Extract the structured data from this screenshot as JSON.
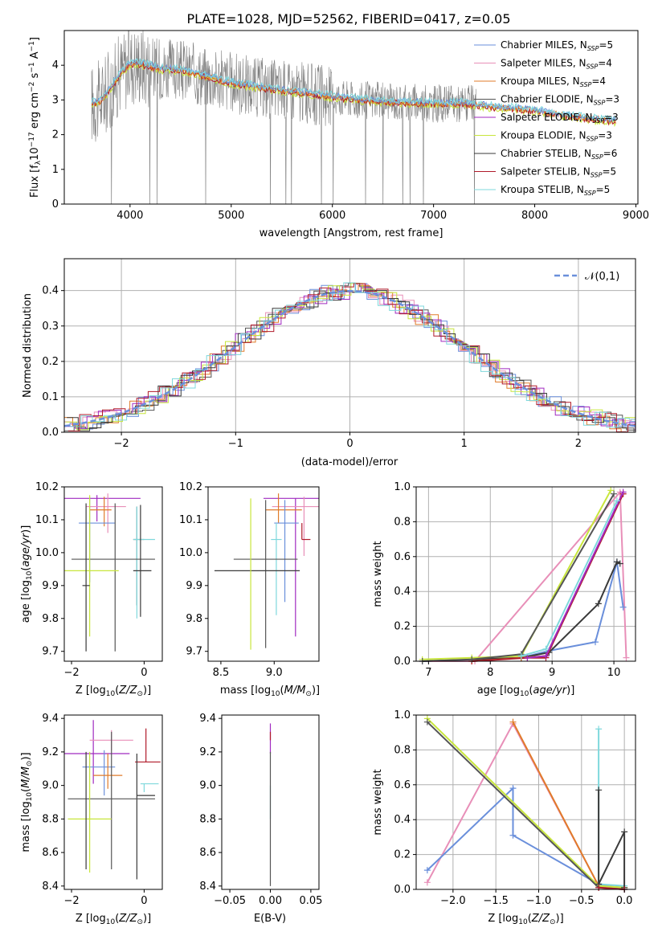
{
  "colors": {
    "chabrier_miles": "#6a8fdb",
    "salpeter_miles": "#e88fb8",
    "kroupa_miles": "#e07b2a",
    "chabrier_elodie": "#555555",
    "salpeter_elodie": "#a02ac0",
    "kroupa_elodie": "#c8e63c",
    "chabrier_stelib": "#3a3a3a",
    "salpeter_stelib": "#b01a2a",
    "kroupa_stelib": "#7fd8dc",
    "data_grey": "#808080",
    "grid": "#b0b0b0"
  },
  "chart_data": [
    {
      "id": "spectrum",
      "type": "line",
      "title": "PLATE=1028, MJD=52562, FIBERID=0417, z=0.05",
      "xlabel": "wavelength [Angstrom, rest frame]",
      "ylabel": "Flux [f_λ10^-17 erg cm^-2 s^-1 A^-1]",
      "xlim": [
        3350,
        9020
      ],
      "ylim": [
        0,
        5
      ],
      "xticks": [
        "4000",
        "5000",
        "6000",
        "7000",
        "8000",
        "9000"
      ],
      "yticks": [
        "0",
        "1",
        "2",
        "3",
        "4"
      ],
      "grid": false,
      "legend_position": "right",
      "legend": [
        {
          "model": "Chabrier MILES",
          "n": "5",
          "color": "chabrier_miles"
        },
        {
          "model": "Salpeter MILES",
          "n": "4",
          "color": "salpeter_miles"
        },
        {
          "model": "Kroupa MILES",
          "n": "4",
          "color": "kroupa_miles"
        },
        {
          "model": "Chabrier ELODIE",
          "n": "3",
          "color": "chabrier_elodie"
        },
        {
          "model": "Salpeter ELODIE",
          "n": "3",
          "color": "salpeter_elodie"
        },
        {
          "model": "Kroupa ELODIE",
          "n": "3",
          "color": "kroupa_elodie"
        },
        {
          "model": "Chabrier STELIB",
          "n": "6",
          "color": "chabrier_stelib"
        },
        {
          "model": "Salpeter STELIB",
          "n": "5",
          "color": "salpeter_stelib"
        },
        {
          "model": "Kroupa STELIB",
          "n": "5",
          "color": "kroupa_stelib"
        }
      ],
      "model_continuum": {
        "x": [
          3620,
          3700,
          3800,
          3900,
          4000,
          4100,
          4300,
          4500,
          4800,
          5000,
          5300,
          5600,
          6000,
          6300,
          6600,
          7000,
          7300,
          7600,
          8000,
          8300,
          8600,
          8800
        ],
        "y": [
          2.9,
          2.95,
          3.3,
          3.75,
          4.05,
          4.05,
          3.9,
          3.85,
          3.65,
          3.5,
          3.35,
          3.25,
          3.1,
          3.0,
          2.95,
          2.9,
          2.9,
          2.8,
          2.7,
          2.55,
          2.45,
          2.4
        ]
      },
      "data_spectrum_description_points": {
        "x": [
          3620,
          3700,
          3800,
          3900,
          4000,
          4200,
          4500,
          5000,
          5500,
          6000,
          6500,
          7000,
          7400
        ],
        "y": [
          3.0,
          2.9,
          3.3,
          3.8,
          4.1,
          3.95,
          3.85,
          3.5,
          3.3,
          3.1,
          2.95,
          2.9,
          2.8
        ]
      }
    },
    {
      "id": "residuals",
      "type": "line",
      "xlabel": "(data-model)/error",
      "ylabel": "Normed distribution",
      "xlim": [
        -2.5,
        2.5
      ],
      "ylim": [
        0,
        0.49
      ],
      "xticks": [
        "−2",
        "−1",
        "0",
        "1",
        "2"
      ],
      "yticks": [
        "0.0",
        "0.1",
        "0.2",
        "0.3",
        "0.4"
      ],
      "grid": true,
      "legend_position": "top-right",
      "gaussian_label": "𝒩(0,1)"
    },
    {
      "id": "age_vs_z",
      "type": "scatter",
      "xlabel": "Z [log10(Z/Z⊙)]",
      "ylabel": "age  [log10(age/yr)]",
      "xlim": [
        -2.2,
        0.5
      ],
      "ylim": [
        9.67,
        10.2
      ],
      "xticks": [
        "−2",
        "0"
      ],
      "yticks": [
        "9.7",
        "9.8",
        "9.9",
        "10.0",
        "10.1",
        "10.2"
      ],
      "points": [
        {
          "color": "salpeter_elodie",
          "x": -1.3,
          "xerr": [
            0.9,
            1.2
          ],
          "y": 10.165,
          "yerr": [
            0.07,
            0.01
          ]
        },
        {
          "color": "salpeter_miles",
          "x": -1.0,
          "xerr": [
            0.6,
            0.5
          ],
          "y": 10.14,
          "yerr": [
            0.08,
            0.04
          ]
        },
        {
          "color": "kroupa_miles",
          "x": -1.1,
          "xerr": [
            0.4,
            0.2
          ],
          "y": 10.13,
          "yerr": [
            0.05,
            0.04
          ]
        },
        {
          "color": "chabrier_miles",
          "x": -1.5,
          "xerr": [
            0.3,
            0.7
          ],
          "y": 10.09,
          "yerr": [
            0.18,
            0.08
          ]
        },
        {
          "color": "chabrier_elodie",
          "x": -0.2,
          "xerr": [
            0.1,
            0.2
          ],
          "y": 10.04,
          "yerr": [
            0.2,
            0.1
          ]
        },
        {
          "color": "kroupa_stelib",
          "x": -0.2,
          "xerr": [
            0.1,
            0.5
          ],
          "y": 10.04,
          "yerr": [
            0.24,
            0.1
          ]
        },
        {
          "color": "chabrier_elodie",
          "x": -0.8,
          "xerr": [
            1.2,
            1.1
          ],
          "y": 9.98,
          "yerr": [
            0.28,
            0.17
          ]
        },
        {
          "color": "kroupa_elodie",
          "x": -1.5,
          "xerr": [
            0.7,
            0.8
          ],
          "y": 9.945,
          "yerr": [
            0.2,
            0.23
          ]
        },
        {
          "color": "chabrier_stelib",
          "x": -0.1,
          "xerr": [
            0.2,
            0.3
          ],
          "y": 9.945,
          "yerr": [
            0.14,
            0.2
          ]
        },
        {
          "color": "chabrier_stelib",
          "x": -1.6,
          "xerr": [
            0.1,
            0.1
          ],
          "y": 9.9,
          "yerr": [
            0.2,
            0.25
          ]
        }
      ]
    },
    {
      "id": "age_vs_mass",
      "type": "scatter",
      "xlabel": "mass [log10(M/M⊙)]",
      "ylabel": "",
      "xlim": [
        8.38,
        9.42
      ],
      "ylim": [
        9.67,
        10.2
      ],
      "xticks": [
        "8.5",
        "9.0"
      ],
      "yticks": [
        "9.7",
        "9.8",
        "9.9",
        "10.0",
        "10.1",
        "10.2"
      ],
      "points": [
        {
          "color": "salpeter_elodie",
          "x": 9.2,
          "xerr": [
            0.3,
            0.4
          ],
          "y": 10.165,
          "yerr": [
            0.42,
            0.0
          ]
        },
        {
          "color": "salpeter_miles",
          "x": 9.28,
          "xerr": [
            0.3,
            0.3
          ],
          "y": 10.14,
          "yerr": [
            0.15,
            0.03
          ]
        },
        {
          "color": "kroupa_miles",
          "x": 9.04,
          "xerr": [
            0.12,
            0.22
          ],
          "y": 10.13,
          "yerr": [
            0.04,
            0.05
          ]
        },
        {
          "color": "chabrier_miles",
          "x": 9.1,
          "xerr": [
            0.1,
            0.13
          ],
          "y": 10.09,
          "yerr": [
            0.24,
            0.07
          ]
        },
        {
          "color": "salpeter_stelib",
          "x": 9.26,
          "xerr": [
            0.0,
            0.08
          ],
          "y": 10.04,
          "yerr": [
            0.0,
            0.05
          ]
        },
        {
          "color": "kroupa_stelib",
          "x": 9.02,
          "xerr": [
            0.05,
            0.05
          ],
          "y": 10.04,
          "yerr": [
            0.23,
            0.05
          ]
        },
        {
          "color": "chabrier_elodie",
          "x": 8.92,
          "xerr": [
            0.3,
            0.3
          ],
          "y": 9.98,
          "yerr": [
            0.27,
            0.18
          ]
        },
        {
          "color": "chabrier_stelib",
          "x": 8.94,
          "xerr": [
            0.5,
            0.3
          ],
          "y": 9.945,
          "yerr": [
            0.0,
            0.0
          ]
        },
        {
          "color": "kroupa_elodie",
          "x": 8.78,
          "xerr": [
            0.0,
            0.0
          ],
          "y": 9.945,
          "yerr": [
            0.24,
            0.22
          ]
        }
      ]
    },
    {
      "id": "weight_vs_age",
      "type": "line",
      "xlabel": "age  [log10(age/yr)]",
      "ylabel": "mass weight",
      "xlim": [
        6.8,
        10.35
      ],
      "ylim": [
        0,
        1.0
      ],
      "xticks": [
        "7",
        "8",
        "9",
        "10"
      ],
      "yticks": [
        "0.0",
        "0.2",
        "0.4",
        "0.6",
        "0.8",
        "1.0"
      ],
      "grid": true,
      "series": [
        {
          "color": "salpeter_miles",
          "x": [
            6.9,
            7.75,
            10.1,
            10.2
          ],
          "y": [
            0.0,
            0.0,
            0.97,
            0.02
          ]
        },
        {
          "color": "chabrier_miles",
          "x": [
            6.9,
            7.7,
            8.5,
            8.95,
            9.7,
            10.05,
            10.15
          ],
          "y": [
            0.0,
            0.01,
            0.02,
            0.06,
            0.11,
            0.57,
            0.31
          ]
        },
        {
          "color": "chabrier_stelib",
          "x": [
            7.7,
            8.5,
            8.95,
            9.75,
            10.05,
            10.1
          ],
          "y": [
            0.01,
            0.02,
            0.05,
            0.33,
            0.57,
            0.56
          ]
        },
        {
          "color": "kroupa_miles",
          "x": [
            7.7,
            8.5,
            8.9,
            10.15
          ],
          "y": [
            0.0,
            0.02,
            0.03,
            0.96
          ]
        },
        {
          "color": "salpeter_stelib",
          "x": [
            7.7,
            8.6,
            8.9,
            10.15
          ],
          "y": [
            0.0,
            0.02,
            0.02,
            0.96
          ]
        },
        {
          "color": "salpeter_elodie",
          "x": [
            8.6,
            8.9,
            10.15
          ],
          "y": [
            0.02,
            0.03,
            0.97
          ]
        },
        {
          "color": "kroupa_elodie",
          "x": [
            6.9,
            7.7,
            8.5,
            9.95
          ],
          "y": [
            0.01,
            0.02,
            0.03,
            0.98
          ]
        },
        {
          "color": "chabrier_elodie",
          "x": [
            6.9,
            7.7,
            8.5,
            10.0
          ],
          "y": [
            0.0,
            0.01,
            0.04,
            0.96
          ]
        },
        {
          "color": "kroupa_stelib",
          "x": [
            8.5,
            8.9,
            10.05
          ],
          "y": [
            0.03,
            0.07,
            0.92
          ]
        }
      ]
    },
    {
      "id": "mass_vs_z",
      "type": "scatter",
      "xlabel": "Z [log10(Z/Z⊙)]",
      "ylabel": "mass [log10(M/M⊙)]",
      "xlim": [
        -2.2,
        0.5
      ],
      "ylim": [
        8.38,
        9.42
      ],
      "xticks": [
        "−2",
        "0"
      ],
      "yticks": [
        "8.4",
        "8.6",
        "8.8",
        "9.0",
        "9.2",
        "9.4"
      ],
      "points": [
        {
          "color": "salpeter_elodie",
          "x": -1.4,
          "xerr": [
            0.8,
            1.0
          ],
          "y": 9.19,
          "yerr": [
            0.18,
            0.2
          ]
        },
        {
          "color": "salpeter_miles",
          "x": -0.9,
          "xerr": [
            0.6,
            0.6
          ],
          "y": 9.27,
          "yerr": [
            0.06,
            0.06
          ]
        },
        {
          "color": "chabrier_miles",
          "x": -1.1,
          "xerr": [
            0.6,
            0.3
          ],
          "y": 9.11,
          "yerr": [
            0.17,
            0.1
          ]
        },
        {
          "color": "kroupa_miles",
          "x": -1.0,
          "xerr": [
            0.4,
            0.4
          ],
          "y": 9.06,
          "yerr": [
            0.08,
            0.13
          ]
        },
        {
          "color": "salpeter_stelib",
          "x": 0.05,
          "xerr": [
            0.3,
            0.4
          ],
          "y": 9.14,
          "yerr": [
            0.0,
            0.2
          ]
        },
        {
          "color": "kroupa_stelib",
          "x": 0.0,
          "xerr": [
            0.1,
            0.4
          ],
          "y": 9.01,
          "yerr": [
            0.05,
            0.0
          ]
        },
        {
          "color": "chabrier_stelib",
          "x": -0.2,
          "xerr": [
            0.0,
            0.5
          ],
          "y": 8.94,
          "yerr": [
            0.5,
            0.25
          ]
        },
        {
          "color": "chabrier_elodie",
          "x": -0.9,
          "xerr": [
            1.2,
            1.2
          ],
          "y": 8.92,
          "yerr": [
            0.42,
            0.4
          ]
        },
        {
          "color": "kroupa_elodie",
          "x": -1.5,
          "xerr": [
            0.6,
            0.6
          ],
          "y": 8.8,
          "yerr": [
            0.32,
            0.4
          ]
        },
        {
          "color": "chabrier_stelib",
          "x": -1.6,
          "xerr": [
            0.0,
            0.0
          ],
          "y": 8.9,
          "yerr": [
            0.4,
            0.3
          ]
        }
      ]
    },
    {
      "id": "mass_vs_ebv",
      "type": "scatter",
      "xlabel": "E(B-V)",
      "ylabel": "",
      "xlim": [
        -0.06,
        0.06
      ],
      "ylim": [
        8.38,
        9.42
      ],
      "xticks": [
        "−0.05",
        "0.00",
        "0.05"
      ],
      "yticks": [
        "8.4",
        "8.6",
        "8.8",
        "9.0",
        "9.2",
        "9.4"
      ],
      "points": [
        {
          "color": "salpeter_elodie",
          "x": 0.0,
          "y": 9.19,
          "yerr": [
            0.0,
            0.18
          ]
        },
        {
          "color": "salpeter_stelib",
          "x": 0.0,
          "y": 9.27,
          "yerr": [
            0.0,
            0.05
          ]
        },
        {
          "color": "kroupa_stelib",
          "x": 0.0,
          "y": 9.0,
          "yerr": [
            0.2,
            0.0
          ]
        },
        {
          "color": "chabrier_elodie",
          "x": 0.0,
          "y": 8.8,
          "yerr": [
            0.4,
            0.4
          ]
        }
      ]
    },
    {
      "id": "weight_vs_z",
      "type": "line",
      "xlabel": "Z [log10(Z/Z⊙)]",
      "ylabel": "mass weight",
      "xlim": [
        -2.43,
        0.13
      ],
      "ylim": [
        0,
        1.0
      ],
      "xticks": [
        "−2.0",
        "−1.5",
        "−1.0",
        "−0.5",
        "0.0"
      ],
      "yticks": [
        "0.0",
        "0.2",
        "0.4",
        "0.6",
        "0.8",
        "1.0"
      ],
      "grid": true,
      "series": [
        {
          "color": "salpeter_miles",
          "x": [
            -2.3,
            -1.3,
            -0.3,
            0.0
          ],
          "y": [
            0.04,
            0.95,
            0.02,
            0.01
          ]
        },
        {
          "color": "chabrier_miles",
          "x": [
            -2.3,
            -1.3,
            -1.3,
            -0.3,
            0.0
          ],
          "y": [
            0.11,
            0.58,
            0.31,
            0.03,
            0.0
          ]
        },
        {
          "color": "kroupa_miles",
          "x": [
            -1.3,
            -0.3,
            0.0
          ],
          "y": [
            0.96,
            0.02,
            0.01
          ]
        },
        {
          "color": "kroupa_elodie",
          "x": [
            -2.3,
            -0.3,
            0.0
          ],
          "y": [
            0.98,
            0.02,
            0.01
          ]
        },
        {
          "color": "chabrier_elodie",
          "x": [
            -2.3,
            -0.3,
            0.0
          ],
          "y": [
            0.96,
            0.01,
            0.0
          ]
        },
        {
          "color": "kroupa_stelib",
          "x": [
            -0.3,
            -0.3,
            0.0
          ],
          "y": [
            0.92,
            0.03,
            0.02
          ]
        },
        {
          "color": "chabrier_stelib",
          "x": [
            -0.3,
            -0.3,
            0.0,
            0.0
          ],
          "y": [
            0.57,
            0.03,
            0.33,
            0.01
          ]
        },
        {
          "color": "salpeter_stelib",
          "x": [
            -0.3,
            0.0
          ],
          "y": [
            0.01,
            0.0
          ]
        }
      ]
    }
  ]
}
